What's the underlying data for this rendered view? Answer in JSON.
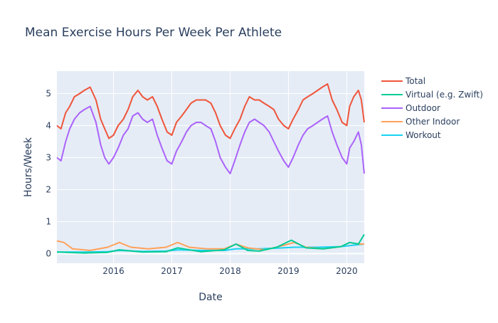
{
  "chart_data": {
    "type": "line",
    "title": "Mean Exercise Hours Per Week Per Athlete",
    "xlabel": "Date",
    "ylabel": "Hours/Week",
    "xlim": [
      2015.03,
      2020.3
    ],
    "ylim": [
      -0.3,
      5.7
    ],
    "grid": true,
    "legend_position": "right",
    "x_ticks": [
      {
        "value": 2016,
        "label": "2016"
      },
      {
        "value": 2017,
        "label": "2017"
      },
      {
        "value": 2018,
        "label": "2018"
      },
      {
        "value": 2019,
        "label": "2019"
      },
      {
        "value": 2020,
        "label": "2020"
      }
    ],
    "y_ticks": [
      {
        "value": 0,
        "label": "0"
      },
      {
        "value": 1,
        "label": "1"
      },
      {
        "value": 2,
        "label": "2"
      },
      {
        "value": 3,
        "label": "3"
      },
      {
        "value": 4,
        "label": "4"
      },
      {
        "value": 5,
        "label": "5"
      }
    ],
    "series": [
      {
        "name": "Total",
        "color": "#EF553B",
        "points": [
          [
            2015.03,
            4.0
          ],
          [
            2015.1,
            3.9
          ],
          [
            2015.18,
            4.4
          ],
          [
            2015.25,
            4.6
          ],
          [
            2015.33,
            4.9
          ],
          [
            2015.42,
            5.0
          ],
          [
            2015.5,
            5.1
          ],
          [
            2015.6,
            5.2
          ],
          [
            2015.7,
            4.8
          ],
          [
            2015.78,
            4.2
          ],
          [
            2015.85,
            3.9
          ],
          [
            2015.92,
            3.6
          ],
          [
            2016.0,
            3.7
          ],
          [
            2016.08,
            4.0
          ],
          [
            2016.17,
            4.2
          ],
          [
            2016.25,
            4.5
          ],
          [
            2016.33,
            4.9
          ],
          [
            2016.42,
            5.1
          ],
          [
            2016.5,
            4.9
          ],
          [
            2016.58,
            4.8
          ],
          [
            2016.67,
            4.9
          ],
          [
            2016.75,
            4.6
          ],
          [
            2016.83,
            4.2
          ],
          [
            2016.92,
            3.8
          ],
          [
            2017.0,
            3.7
          ],
          [
            2017.08,
            4.1
          ],
          [
            2017.17,
            4.3
          ],
          [
            2017.25,
            4.5
          ],
          [
            2017.33,
            4.7
          ],
          [
            2017.42,
            4.8
          ],
          [
            2017.5,
            4.8
          ],
          [
            2017.58,
            4.8
          ],
          [
            2017.67,
            4.7
          ],
          [
            2017.75,
            4.4
          ],
          [
            2017.83,
            4.0
          ],
          [
            2017.92,
            3.7
          ],
          [
            2018.0,
            3.6
          ],
          [
            2018.08,
            3.9
          ],
          [
            2018.17,
            4.2
          ],
          [
            2018.25,
            4.6
          ],
          [
            2018.33,
            4.9
          ],
          [
            2018.42,
            4.8
          ],
          [
            2018.5,
            4.8
          ],
          [
            2018.58,
            4.7
          ],
          [
            2018.67,
            4.6
          ],
          [
            2018.75,
            4.5
          ],
          [
            2018.83,
            4.2
          ],
          [
            2018.92,
            4.0
          ],
          [
            2019.0,
            3.9
          ],
          [
            2019.08,
            4.2
          ],
          [
            2019.17,
            4.5
          ],
          [
            2019.25,
            4.8
          ],
          [
            2019.33,
            4.9
          ],
          [
            2019.42,
            5.0
          ],
          [
            2019.5,
            5.1
          ],
          [
            2019.58,
            5.2
          ],
          [
            2019.67,
            5.3
          ],
          [
            2019.75,
            4.8
          ],
          [
            2019.83,
            4.5
          ],
          [
            2019.92,
            4.1
          ],
          [
            2020.0,
            4.0
          ],
          [
            2020.05,
            4.6
          ],
          [
            2020.12,
            4.9
          ],
          [
            2020.2,
            5.1
          ],
          [
            2020.25,
            4.8
          ],
          [
            2020.3,
            4.1
          ]
        ]
      },
      {
        "name": "Virtual (e.g. Zwift)",
        "color": "#00CC96",
        "points": [
          [
            2015.03,
            0.05
          ],
          [
            2015.5,
            0.02
          ],
          [
            2015.9,
            0.04
          ],
          [
            2016.1,
            0.12
          ],
          [
            2016.5,
            0.05
          ],
          [
            2016.9,
            0.06
          ],
          [
            2017.1,
            0.18
          ],
          [
            2017.5,
            0.06
          ],
          [
            2017.9,
            0.12
          ],
          [
            2018.1,
            0.3
          ],
          [
            2018.3,
            0.1
          ],
          [
            2018.5,
            0.08
          ],
          [
            2018.8,
            0.2
          ],
          [
            2019.05,
            0.42
          ],
          [
            2019.3,
            0.18
          ],
          [
            2019.6,
            0.15
          ],
          [
            2019.9,
            0.22
          ],
          [
            2020.05,
            0.35
          ],
          [
            2020.2,
            0.3
          ],
          [
            2020.3,
            0.6
          ]
        ]
      },
      {
        "name": "Outdoor",
        "color": "#AB63FA",
        "points": [
          [
            2015.03,
            3.0
          ],
          [
            2015.1,
            2.9
          ],
          [
            2015.18,
            3.5
          ],
          [
            2015.25,
            3.9
          ],
          [
            2015.33,
            4.2
          ],
          [
            2015.42,
            4.4
          ],
          [
            2015.5,
            4.5
          ],
          [
            2015.6,
            4.6
          ],
          [
            2015.7,
            4.1
          ],
          [
            2015.78,
            3.4
          ],
          [
            2015.85,
            3.0
          ],
          [
            2015.92,
            2.8
          ],
          [
            2016.0,
            3.0
          ],
          [
            2016.08,
            3.3
          ],
          [
            2016.17,
            3.7
          ],
          [
            2016.25,
            3.9
          ],
          [
            2016.33,
            4.3
          ],
          [
            2016.42,
            4.4
          ],
          [
            2016.5,
            4.2
          ],
          [
            2016.58,
            4.1
          ],
          [
            2016.67,
            4.2
          ],
          [
            2016.75,
            3.7
          ],
          [
            2016.83,
            3.3
          ],
          [
            2016.92,
            2.9
          ],
          [
            2017.0,
            2.8
          ],
          [
            2017.08,
            3.2
          ],
          [
            2017.17,
            3.5
          ],
          [
            2017.25,
            3.8
          ],
          [
            2017.33,
            4.0
          ],
          [
            2017.42,
            4.1
          ],
          [
            2017.5,
            4.1
          ],
          [
            2017.58,
            4.0
          ],
          [
            2017.67,
            3.9
          ],
          [
            2017.75,
            3.5
          ],
          [
            2017.83,
            3.0
          ],
          [
            2017.92,
            2.7
          ],
          [
            2018.0,
            2.5
          ],
          [
            2018.08,
            2.9
          ],
          [
            2018.17,
            3.4
          ],
          [
            2018.25,
            3.8
          ],
          [
            2018.33,
            4.1
          ],
          [
            2018.42,
            4.2
          ],
          [
            2018.5,
            4.1
          ],
          [
            2018.58,
            4.0
          ],
          [
            2018.67,
            3.8
          ],
          [
            2018.75,
            3.5
          ],
          [
            2018.83,
            3.2
          ],
          [
            2018.92,
            2.9
          ],
          [
            2019.0,
            2.7
          ],
          [
            2019.08,
            3.0
          ],
          [
            2019.17,
            3.4
          ],
          [
            2019.25,
            3.7
          ],
          [
            2019.33,
            3.9
          ],
          [
            2019.42,
            4.0
          ],
          [
            2019.5,
            4.1
          ],
          [
            2019.58,
            4.2
          ],
          [
            2019.67,
            4.3
          ],
          [
            2019.75,
            3.8
          ],
          [
            2019.83,
            3.4
          ],
          [
            2019.92,
            3.0
          ],
          [
            2020.0,
            2.8
          ],
          [
            2020.05,
            3.3
          ],
          [
            2020.12,
            3.5
          ],
          [
            2020.2,
            3.8
          ],
          [
            2020.25,
            3.4
          ],
          [
            2020.3,
            2.5
          ]
        ]
      },
      {
        "name": "Other Indoor",
        "color": "#FFA15A",
        "points": [
          [
            2015.03,
            0.4
          ],
          [
            2015.15,
            0.35
          ],
          [
            2015.3,
            0.15
          ],
          [
            2015.6,
            0.1
          ],
          [
            2015.9,
            0.2
          ],
          [
            2016.1,
            0.35
          ],
          [
            2016.3,
            0.2
          ],
          [
            2016.6,
            0.15
          ],
          [
            2016.9,
            0.2
          ],
          [
            2017.1,
            0.35
          ],
          [
            2017.3,
            0.2
          ],
          [
            2017.6,
            0.15
          ],
          [
            2017.9,
            0.15
          ],
          [
            2018.1,
            0.3
          ],
          [
            2018.3,
            0.18
          ],
          [
            2018.6,
            0.12
          ],
          [
            2018.9,
            0.25
          ],
          [
            2019.1,
            0.35
          ],
          [
            2019.3,
            0.2
          ],
          [
            2019.6,
            0.15
          ],
          [
            2019.9,
            0.22
          ],
          [
            2020.05,
            0.35
          ],
          [
            2020.2,
            0.3
          ],
          [
            2020.3,
            0.3
          ]
        ]
      },
      {
        "name": "Workout",
        "color": "#19D3F3",
        "points": [
          [
            2015.03,
            0.05
          ],
          [
            2015.5,
            0.05
          ],
          [
            2015.9,
            0.06
          ],
          [
            2016.1,
            0.1
          ],
          [
            2016.5,
            0.07
          ],
          [
            2016.9,
            0.08
          ],
          [
            2017.1,
            0.12
          ],
          [
            2017.5,
            0.1
          ],
          [
            2017.9,
            0.1
          ],
          [
            2018.1,
            0.15
          ],
          [
            2018.5,
            0.15
          ],
          [
            2018.9,
            0.18
          ],
          [
            2019.1,
            0.2
          ],
          [
            2019.5,
            0.2
          ],
          [
            2019.9,
            0.22
          ],
          [
            2020.05,
            0.25
          ],
          [
            2020.2,
            0.28
          ],
          [
            2020.3,
            0.3
          ]
        ]
      }
    ]
  }
}
